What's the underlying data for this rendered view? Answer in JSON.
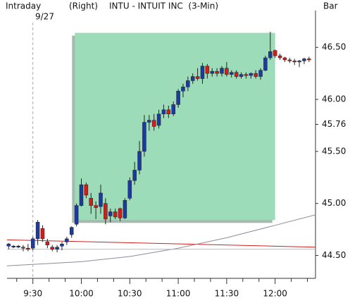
{
  "chart_data": {
    "type": "candlestick",
    "mode": "Intraday",
    "date": "9/27",
    "axis_side": "(Right)",
    "title": "INTU - INTUIT INC  (3-Min)",
    "style": "Bar",
    "up_color": "#1c3aa0",
    "down_color": "#d41c1c",
    "xlim": [
      554,
      745
    ],
    "xticks": [
      {
        "value": 570,
        "label": "9:30"
      },
      {
        "value": 600,
        "label": "10:00"
      },
      {
        "value": 630,
        "label": "10:30"
      },
      {
        "value": 660,
        "label": "11:00"
      },
      {
        "value": 690,
        "label": "11:30"
      },
      {
        "value": 720,
        "label": "12:00"
      }
    ],
    "xminorticks": [
      560,
      580,
      590,
      610,
      620,
      640,
      650,
      670,
      680,
      700,
      710,
      730,
      740
    ],
    "date_break": 570,
    "ylim": [
      44.28,
      46.82
    ],
    "yticks": [
      {
        "value": 44.5,
        "label": "44.50"
      },
      {
        "value": 45,
        "label": "45.00"
      },
      {
        "value": 45.5,
        "label": "45.50"
      },
      45.76,
      {
        "value": 46,
        "label": "46.00"
      },
      {
        "value": 46.5,
        "label": "46.50"
      }
    ],
    "highlight": {
      "color": "#9ddcb8",
      "x": [
        596,
        720
      ],
      "y": [
        44.84,
        46.64
      ]
    },
    "x": [
      555,
      558,
      561,
      564,
      567,
      570,
      573,
      576,
      579,
      582,
      585,
      588,
      591,
      594,
      597,
      600,
      603,
      606,
      609,
      612,
      615,
      618,
      621,
      624,
      627,
      630,
      633,
      636,
      639,
      642,
      645,
      648,
      651,
      654,
      657,
      660,
      663,
      666,
      669,
      672,
      675,
      678,
      681,
      684,
      687,
      690,
      693,
      696,
      699,
      702,
      705,
      708,
      711,
      714,
      717,
      720,
      723,
      726,
      729,
      732,
      735,
      738,
      741
    ],
    "open": [
      44.59,
      44.58,
      44.58,
      44.58,
      44.57,
      44.57,
      44.66,
      44.76,
      44.63,
      44.58,
      44.56,
      44.59,
      44.63,
      44.7,
      44.8,
      44.98,
      45.18,
      45.05,
      44.98,
      44.97,
      45.0,
      44.88,
      44.92,
      44.95,
      44.86,
      45.05,
      45.22,
      45.32,
      45.5,
      45.78,
      45.8,
      45.75,
      45.86,
      45.9,
      45.86,
      45.95,
      46.08,
      46.12,
      46.18,
      46.22,
      46.2,
      46.32,
      46.25,
      46.27,
      46.25,
      46.3,
      46.24,
      46.26,
      46.22,
      46.24,
      46.23,
      46.25,
      46.22,
      46.28,
      46.4,
      46.47,
      46.42,
      46.4,
      46.38,
      46.37,
      46.36,
      46.37,
      46.39
    ],
    "high": [
      44.62,
      44.6,
      44.6,
      44.6,
      44.61,
      44.68,
      44.84,
      44.79,
      44.66,
      44.6,
      44.6,
      44.63,
      44.68,
      44.78,
      45.0,
      45.24,
      45.2,
      45.1,
      45.02,
      45.18,
      45.05,
      44.95,
      44.95,
      44.96,
      45.05,
      45.25,
      45.4,
      45.6,
      45.85,
      45.85,
      45.86,
      45.9,
      45.95,
      45.94,
      45.98,
      46.1,
      46.15,
      46.22,
      46.25,
      46.3,
      46.35,
      46.34,
      46.3,
      46.3,
      46.32,
      46.36,
      46.28,
      46.28,
      46.26,
      46.26,
      46.26,
      46.28,
      46.3,
      46.42,
      46.65,
      46.48,
      46.44,
      46.41,
      46.4,
      46.39,
      46.38,
      46.4,
      46.41
    ],
    "low": [
      44.56,
      44.57,
      44.57,
      44.54,
      44.54,
      44.55,
      44.6,
      44.63,
      44.57,
      44.54,
      44.53,
      44.55,
      44.6,
      44.67,
      44.78,
      44.97,
      45.05,
      44.9,
      44.85,
      44.9,
      44.8,
      44.82,
      44.85,
      44.83,
      44.85,
      45.03,
      45.18,
      45.28,
      45.45,
      45.7,
      45.7,
      45.72,
      45.82,
      45.82,
      45.84,
      45.92,
      46.02,
      46.08,
      46.15,
      46.18,
      46.15,
      46.2,
      46.22,
      46.22,
      46.22,
      46.22,
      46.21,
      46.2,
      46.2,
      46.2,
      46.2,
      46.2,
      46.19,
      46.27,
      46.38,
      46.4,
      46.38,
      46.36,
      46.35,
      46.33,
      46.31,
      46.34,
      46.36
    ],
    "close": [
      44.61,
      44.59,
      44.59,
      44.57,
      44.56,
      44.66,
      44.82,
      44.66,
      44.6,
      44.56,
      44.58,
      44.61,
      44.66,
      44.77,
      44.98,
      45.18,
      45.08,
      44.98,
      44.96,
      45.1,
      44.85,
      44.92,
      44.87,
      44.86,
      45.03,
      45.22,
      45.32,
      45.5,
      45.78,
      45.8,
      45.74,
      45.86,
      45.9,
      45.86,
      45.95,
      46.08,
      46.12,
      46.18,
      46.22,
      46.2,
      46.32,
      46.25,
      46.27,
      46.25,
      46.3,
      46.24,
      46.26,
      46.22,
      46.24,
      46.23,
      46.25,
      46.22,
      46.28,
      46.4,
      46.46,
      46.42,
      46.4,
      46.38,
      46.37,
      46.36,
      46.37,
      46.39,
      46.38
    ],
    "lines": [
      {
        "color": "#d42020",
        "x": [
          554,
          745
        ],
        "values": [
          44.65,
          44.58
        ]
      },
      {
        "color": "#8c8c9c",
        "x": [
          554,
          600,
          630,
          660,
          690,
          720,
          745
        ],
        "values": [
          44.4,
          44.44,
          44.49,
          44.57,
          44.67,
          44.79,
          44.89
        ]
      },
      {
        "color": "#b8b8b8",
        "x": [
          554,
          745
        ],
        "values": [
          44.56,
          44.56
        ]
      }
    ]
  }
}
